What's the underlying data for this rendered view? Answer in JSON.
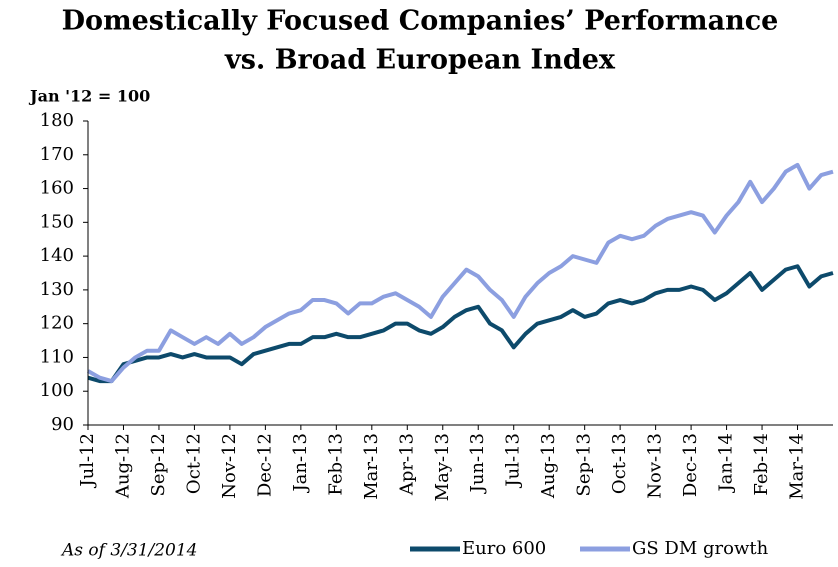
{
  "chart_data": {
    "type": "line",
    "title": "Domestically Focused Companies’ Performance",
    "subtitle": "vs. Broad European Index",
    "y_label": "Jan '12 = 100",
    "note": "As of 3/31/2014",
    "categories": [
      "Jul-12",
      null,
      null,
      "Aug-12",
      null,
      null,
      "Sep-12",
      null,
      null,
      "Oct-12",
      null,
      null,
      "Nov-12",
      null,
      null,
      "Dec-12",
      null,
      null,
      "Jan-13",
      null,
      null,
      "Feb-13",
      null,
      null,
      "Mar-13",
      null,
      null,
      "Apr-13",
      null,
      null,
      "May-13",
      null,
      null,
      "Jun-13",
      null,
      null,
      "Jul-13",
      null,
      null,
      "Aug-13",
      null,
      null,
      "Sep-13",
      null,
      null,
      "Oct-13",
      null,
      null,
      "Nov-13",
      null,
      null,
      "Dec-13",
      null,
      null,
      "Jan-14",
      null,
      null,
      "Feb-14",
      null,
      null,
      "Mar-14",
      null,
      null,
      null
    ],
    "series": [
      {
        "name": "Euro 600",
        "color": "#0d4a6b",
        "values": [
          104,
          103,
          103,
          108,
          109,
          110,
          110,
          111,
          110,
          111,
          110,
          110,
          110,
          108,
          111,
          112,
          113,
          114,
          114,
          116,
          116,
          117,
          116,
          116,
          117,
          118,
          120,
          120,
          118,
          117,
          119,
          122,
          124,
          125,
          120,
          118,
          113,
          117,
          120,
          121,
          122,
          124,
          122,
          123,
          126,
          127,
          126,
          127,
          129,
          130,
          130,
          131,
          130,
          127,
          129,
          132,
          135,
          130,
          133,
          136,
          137,
          131,
          134,
          135
        ]
      },
      {
        "name": "GS DM growth",
        "color": "#8c9fe0",
        "values": [
          106,
          104,
          103,
          107,
          110,
          112,
          112,
          118,
          116,
          114,
          116,
          114,
          117,
          114,
          116,
          119,
          121,
          123,
          124,
          127,
          127,
          126,
          123,
          126,
          126,
          128,
          129,
          127,
          125,
          122,
          128,
          132,
          136,
          134,
          130,
          127,
          122,
          128,
          132,
          135,
          137,
          140,
          139,
          138,
          144,
          146,
          145,
          146,
          149,
          151,
          152,
          153,
          152,
          147,
          152,
          156,
          162,
          156,
          160,
          165,
          167,
          160,
          164,
          165
        ]
      }
    ],
    "ylim": [
      90,
      180
    ],
    "yticks": [
      90,
      100,
      110,
      120,
      130,
      140,
      150,
      160,
      170,
      180
    ]
  }
}
